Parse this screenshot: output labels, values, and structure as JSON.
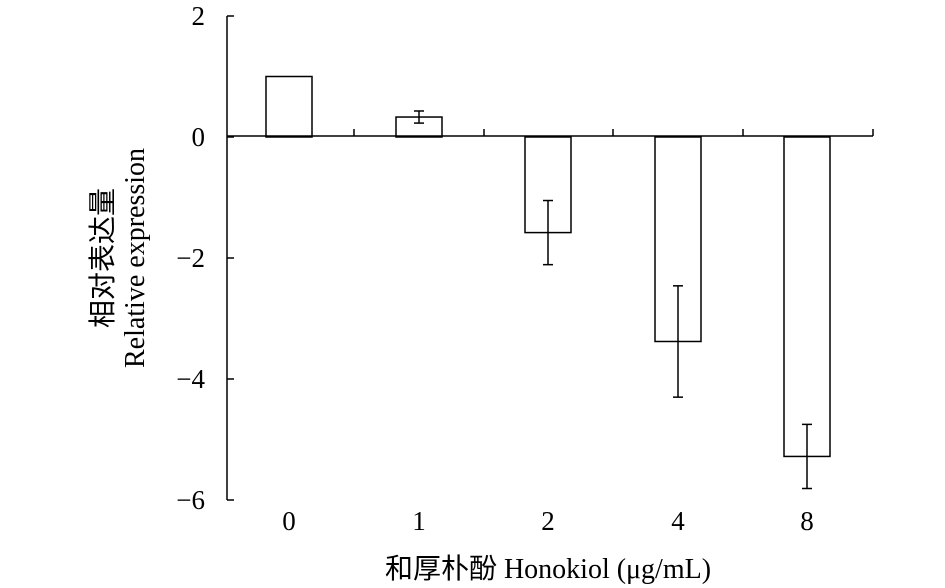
{
  "chart_data": {
    "type": "bar",
    "categories": [
      "0",
      "1",
      "2",
      "4",
      "8"
    ],
    "values": [
      1.0,
      0.33,
      -1.58,
      -3.38,
      -5.28
    ],
    "error": [
      0.0,
      0.1,
      0.53,
      0.92,
      0.53
    ],
    "xlabel": "和厚朴酚  Honokiol (μg/mL)",
    "ylabel_lines": [
      "相对表达量",
      "Relative expression"
    ],
    "ylim": [
      -6,
      2
    ],
    "yticks": [
      2,
      0,
      -2,
      -4,
      -6
    ],
    "ytick_labels": [
      "2",
      "0",
      "−2",
      "−4",
      "−6"
    ],
    "grid": false,
    "bar_fill": "#ffffff",
    "bar_stroke": "#000000"
  }
}
